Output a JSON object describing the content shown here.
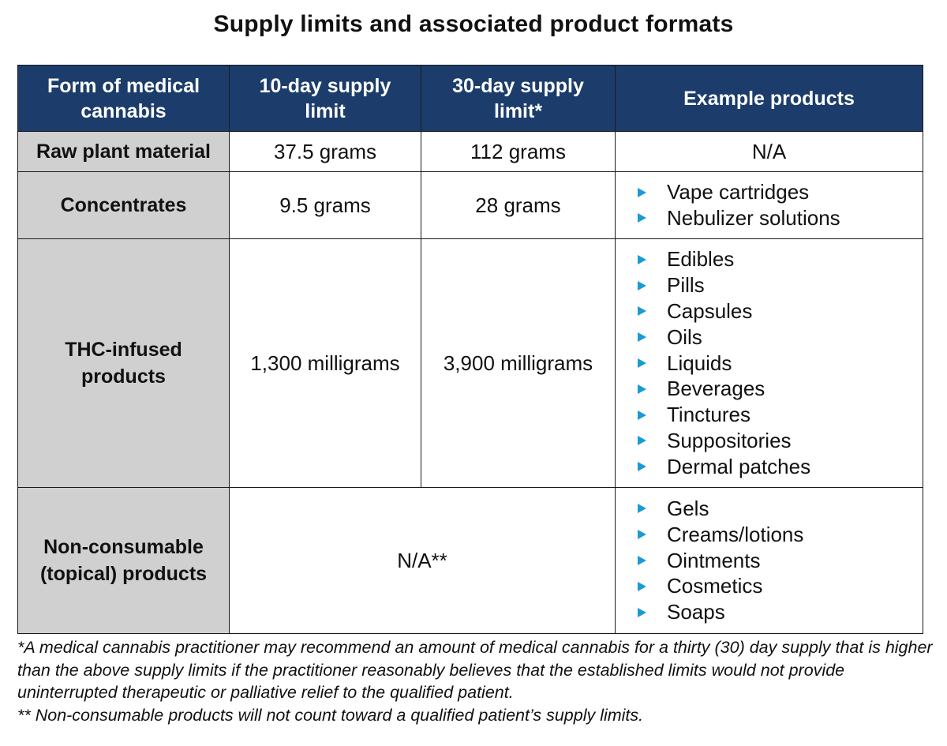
{
  "title": "Supply limits and associated product formats",
  "colors": {
    "header_bg": "#1c3d6b",
    "rowhead_bg": "#d0d0d0",
    "bullet": "#1a9ad6"
  },
  "table": {
    "headers": [
      "Form of medical cannabis",
      "10-day supply limit",
      "30-day supply limit*",
      "Example products"
    ],
    "rows": [
      {
        "form": "Raw plant material",
        "ten_day": "37.5 grams",
        "thirty_day": "112 grams",
        "examples_text": "N/A"
      },
      {
        "form": "Concentrates",
        "ten_day": "9.5 grams",
        "thirty_day": "28 grams",
        "examples": [
          "Vape cartridges",
          "Nebulizer solutions"
        ]
      },
      {
        "form": "THC-infused products",
        "ten_day": "1,300 milligrams",
        "thirty_day": "3,900 milligrams",
        "examples": [
          "Edibles",
          "Pills",
          "Capsules",
          "Oils",
          "Liquids",
          "Beverages",
          "Tinctures",
          "Suppositories",
          "Dermal patches"
        ]
      },
      {
        "form": "Non-consumable (topical) products",
        "limits_merged": "N/A**",
        "examples": [
          "Gels",
          "Creams/lotions",
          "Ointments",
          "Cosmetics",
          "Soaps"
        ]
      }
    ]
  },
  "footnotes": [
    "*A medical cannabis practitioner may recommend an amount of medical cannabis for a thirty (30) day supply that is higher than the above supply limits if the practitioner reasonably believes that the established limits would not provide uninterrupted therapeutic or palliative relief to the qualified patient.",
    "** Non-consumable products will not count toward a qualified patient’s supply limits."
  ]
}
